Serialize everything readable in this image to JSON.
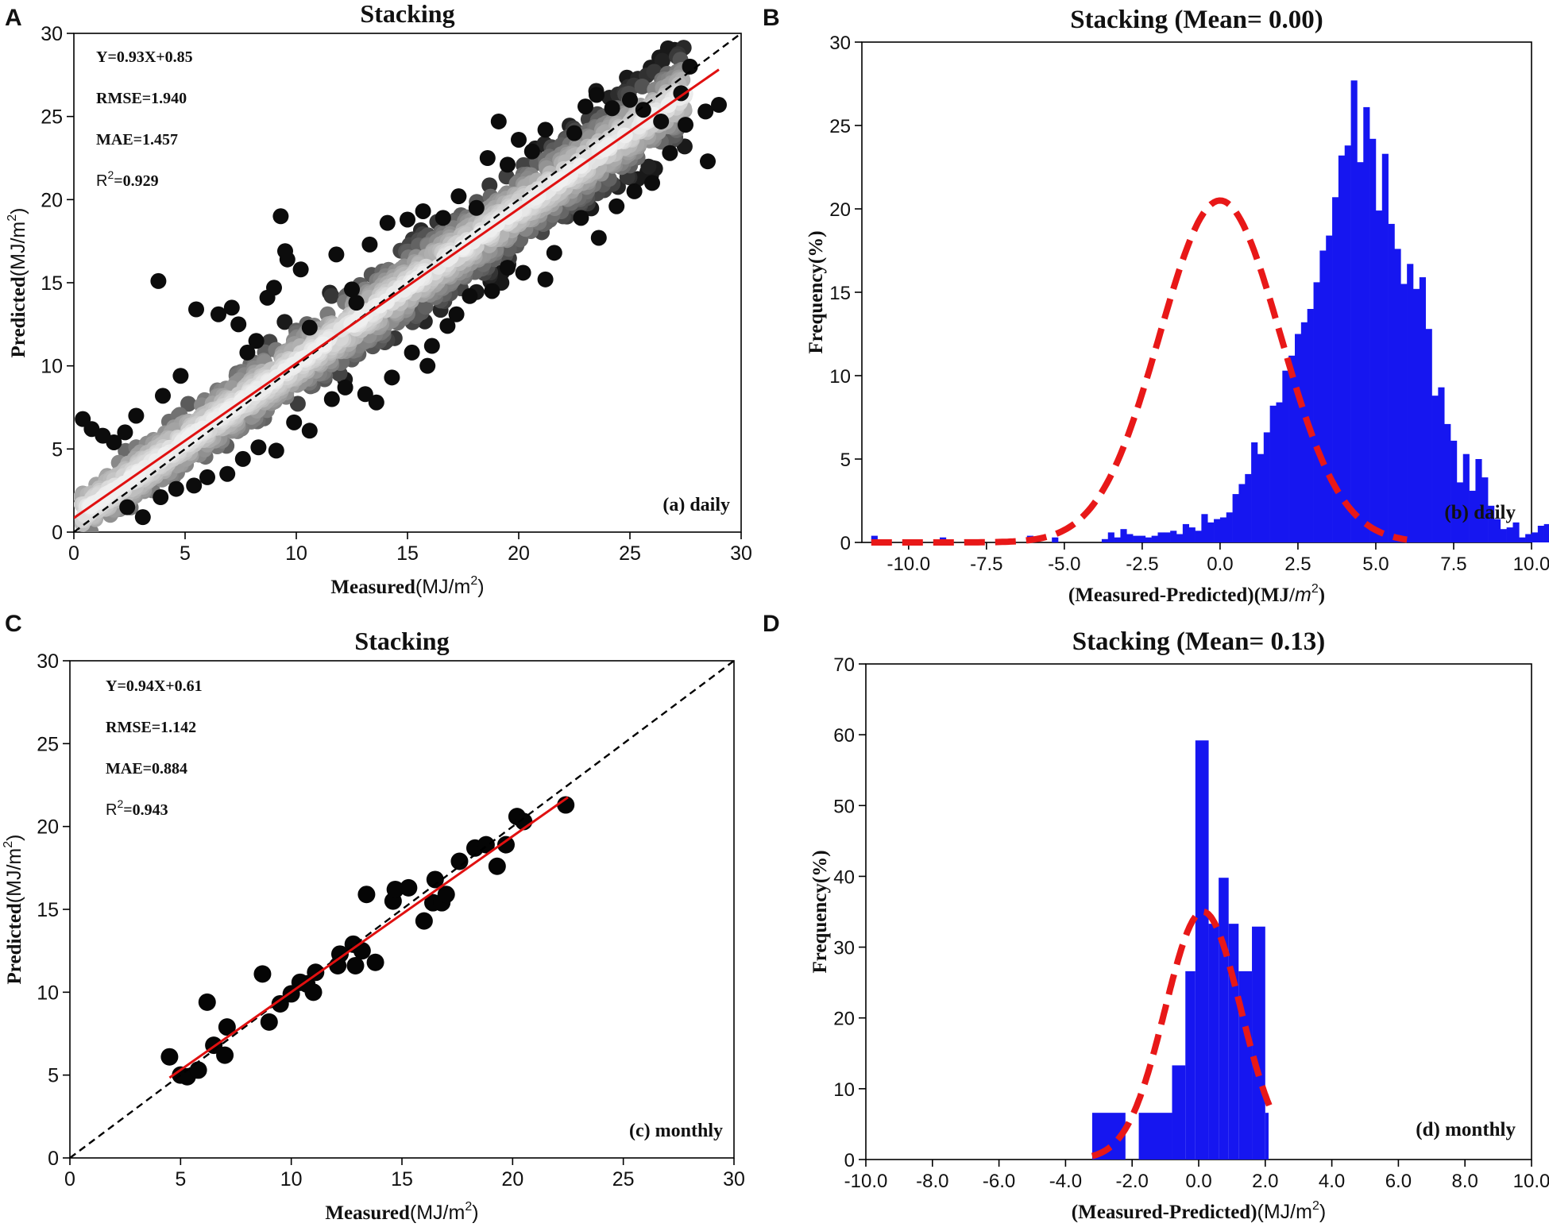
{
  "chart_data": [
    {
      "panel": "A",
      "type": "scatter",
      "title": "Stacking",
      "xlabel_bold": "Measured",
      "xlabel_unit": "(MJ/m",
      "ylabel_bold": "Predicted",
      "ylabel_unit": "(MJ/m",
      "sup": "2",
      "close_paren": ")",
      "xlim": [
        0,
        30
      ],
      "ylim": [
        0,
        30
      ],
      "xticks": [
        "0",
        "5",
        "10",
        "15",
        "20",
        "25",
        "30"
      ],
      "yticks": [
        "0",
        "5",
        "10",
        "15",
        "20",
        "25",
        "30"
      ],
      "stats": {
        "equation": "Y=0.93X+0.85",
        "rmse": "RMSE=1.940",
        "mae": "MAE=1.457",
        "r2_prefix": "R",
        "r2_sup": "2",
        "r2_value": "=0.929"
      },
      "panel_note": "(a) daily",
      "fit": {
        "slope": 0.93,
        "intercept": 0.85
      },
      "point_cloud": "dense",
      "outliers": [
        [
          0.4,
          6.8
        ],
        [
          0.8,
          6.2
        ],
        [
          1.3,
          5.8
        ],
        [
          1.8,
          5.4
        ],
        [
          2.3,
          6.0
        ],
        [
          2.8,
          7.0
        ],
        [
          3.8,
          15.1
        ],
        [
          4.0,
          8.2
        ],
        [
          4.8,
          9.4
        ],
        [
          5.5,
          13.4
        ],
        [
          6.5,
          13.1
        ],
        [
          7.1,
          13.5
        ],
        [
          7.4,
          12.5
        ],
        [
          7.8,
          10.8
        ],
        [
          8.2,
          11.5
        ],
        [
          8.7,
          14.1
        ],
        [
          9.0,
          14.7
        ],
        [
          9.3,
          19.0
        ],
        [
          9.5,
          16.9
        ],
        [
          9.6,
          16.4
        ],
        [
          10.2,
          15.8
        ],
        [
          10.6,
          12.3
        ],
        [
          11.8,
          16.7
        ],
        [
          12.5,
          14.6
        ],
        [
          12.7,
          13.8
        ],
        [
          13.3,
          17.3
        ],
        [
          14.1,
          18.6
        ],
        [
          15.0,
          18.8
        ],
        [
          15.7,
          19.3
        ],
        [
          16.6,
          18.9
        ],
        [
          17.3,
          20.2
        ],
        [
          18.1,
          19.5
        ],
        [
          18.6,
          22.5
        ],
        [
          19.1,
          24.7
        ],
        [
          19.5,
          22.1
        ],
        [
          20.0,
          23.6
        ],
        [
          20.6,
          22.9
        ],
        [
          21.2,
          24.2
        ],
        [
          22.5,
          24.0
        ],
        [
          23.0,
          25.6
        ],
        [
          23.5,
          26.3
        ],
        [
          24.2,
          25.5
        ],
        [
          25.0,
          26.0
        ],
        [
          25.6,
          25.4
        ],
        [
          26.4,
          24.7
        ],
        [
          27.3,
          26.4
        ],
        [
          27.7,
          28.0
        ],
        [
          28.4,
          25.3
        ],
        [
          29.0,
          25.7
        ],
        [
          28.5,
          22.3
        ],
        [
          27.5,
          24.5
        ],
        [
          26.8,
          22.8
        ],
        [
          26.0,
          21.0
        ],
        [
          25.2,
          20.5
        ],
        [
          24.4,
          19.6
        ],
        [
          23.6,
          17.7
        ],
        [
          22.8,
          18.9
        ],
        [
          21.6,
          16.8
        ],
        [
          21.2,
          15.2
        ],
        [
          20.2,
          15.6
        ],
        [
          19.5,
          15.9
        ],
        [
          18.8,
          14.5
        ],
        [
          17.8,
          14.2
        ],
        [
          17.2,
          13.1
        ],
        [
          16.8,
          12.4
        ],
        [
          16.1,
          11.2
        ],
        [
          15.9,
          10.0
        ],
        [
          15.2,
          10.8
        ],
        [
          14.3,
          9.3
        ],
        [
          13.6,
          7.8
        ],
        [
          13.1,
          8.3
        ],
        [
          12.2,
          8.7
        ],
        [
          11.6,
          8.0
        ],
        [
          10.6,
          6.1
        ],
        [
          9.9,
          6.6
        ],
        [
          9.1,
          4.9
        ],
        [
          8.3,
          5.1
        ],
        [
          7.6,
          4.4
        ],
        [
          6.9,
          3.5
        ],
        [
          6.0,
          3.3
        ],
        [
          5.4,
          2.8
        ],
        [
          4.6,
          2.6
        ],
        [
          3.9,
          2.1
        ],
        [
          3.1,
          0.9
        ],
        [
          2.4,
          1.5
        ]
      ]
    },
    {
      "panel": "B",
      "type": "bar",
      "title": "Stacking (Mean= 0.00)",
      "xlabel_bold": "(Measured-Predicted)",
      "xlabel_unit": "(MJ/",
      "xlabel_ital": "m",
      "sup": "2",
      "close_paren": ")",
      "ylabel": "Frequency(%)",
      "xlim": [
        -11.5,
        10.0
      ],
      "ylim": [
        0,
        30
      ],
      "xticks": [
        "-10.0",
        "-7.5",
        "-5.0",
        "-2.5",
        "0.0",
        "2.5",
        "5.0",
        "7.5",
        "10.0"
      ],
      "yticks": [
        "0",
        "5",
        "10",
        "15",
        "20",
        "25",
        "30"
      ],
      "panel_note": "(b) daily",
      "bin_start": -11.2,
      "bin_width": 0.2,
      "values": [
        0.4,
        0,
        0,
        0,
        0,
        0,
        0,
        0,
        0,
        0,
        0,
        0.3,
        0,
        0,
        0,
        0,
        0,
        0,
        0,
        0,
        0,
        0,
        0,
        0,
        0,
        0.4,
        0,
        0,
        0,
        0.3,
        0,
        0,
        0,
        0,
        0,
        0,
        0,
        0.2,
        0.6,
        0.3,
        0.8,
        0.5,
        0.4,
        0.4,
        0.3,
        0.4,
        0.6,
        0.6,
        0.7,
        0.5,
        1.1,
        0.9,
        0.7,
        1.7,
        1.2,
        1.4,
        1.5,
        1.8,
        2.9,
        3.5,
        4.1,
        6.0,
        5.3,
        6.6,
        8.2,
        8.4,
        10.3,
        11.2,
        12.5,
        13.2,
        14.0,
        15.6,
        17.5,
        18.4,
        20.7,
        23.2,
        23.8,
        27.7,
        22.8,
        26.1,
        24.2,
        19.9,
        23.3,
        19.1,
        17.6,
        15.5,
        16.7,
        15.2,
        15.9,
        12.8,
        8.8,
        9.3,
        7.1,
        6.1,
        3.6,
        5.3,
        3.1,
        5.0,
        3.9,
        2.2,
        1.4,
        0.8,
        0.9,
        1.2,
        0.3,
        0.5,
        0.6,
        1.0,
        1.1,
        0.8,
        0.3
      ],
      "normal_mean": 0.0,
      "normal_sd": 1.94,
      "normal_peak": 20.5
    },
    {
      "panel": "C",
      "type": "scatter",
      "title": "Stacking",
      "xlabel_bold": "Measured",
      "xlabel_unit": "(MJ/m",
      "ylabel_bold": "Predicted",
      "ylabel_unit": "(MJ/m",
      "sup": "2",
      "close_paren": ")",
      "xlim": [
        0,
        30
      ],
      "ylim": [
        0,
        30
      ],
      "xticks": [
        "0",
        "5",
        "10",
        "15",
        "20",
        "25",
        "30"
      ],
      "yticks": [
        "0",
        "5",
        "10",
        "15",
        "20",
        "25",
        "30"
      ],
      "stats": {
        "equation": "Y=0.94X+0.61",
        "rmse": "RMSE=1.142",
        "mae": "MAE=0.884",
        "r2_prefix": "R",
        "r2_sup": "2",
        "r2_value": "=0.943"
      },
      "panel_note": "(c) monthly",
      "fit": {
        "slope": 0.94,
        "intercept": 0.61,
        "x_from": 4.5,
        "x_to": 22.5
      },
      "points": [
        [
          4.5,
          6.1
        ],
        [
          5.0,
          5.0
        ],
        [
          5.3,
          4.9
        ],
        [
          5.8,
          5.3
        ],
        [
          6.2,
          9.4
        ],
        [
          6.5,
          6.8
        ],
        [
          7.0,
          6.2
        ],
        [
          7.1,
          7.9
        ],
        [
          8.7,
          11.1
        ],
        [
          9.0,
          8.2
        ],
        [
          9.5,
          9.3
        ],
        [
          10.0,
          9.9
        ],
        [
          10.4,
          10.6
        ],
        [
          10.7,
          10.5
        ],
        [
          11.0,
          10.0
        ],
        [
          11.1,
          11.2
        ],
        [
          12.1,
          11.6
        ],
        [
          12.2,
          12.3
        ],
        [
          12.8,
          12.9
        ],
        [
          12.9,
          11.6
        ],
        [
          13.2,
          12.5
        ],
        [
          13.4,
          15.9
        ],
        [
          13.8,
          11.8
        ],
        [
          14.6,
          15.5
        ],
        [
          14.7,
          16.2
        ],
        [
          15.3,
          16.3
        ],
        [
          16.0,
          14.3
        ],
        [
          16.4,
          15.4
        ],
        [
          16.5,
          16.8
        ],
        [
          16.8,
          15.4
        ],
        [
          17.0,
          15.9
        ],
        [
          17.6,
          17.9
        ],
        [
          18.3,
          18.7
        ],
        [
          18.8,
          18.9
        ],
        [
          19.3,
          17.6
        ],
        [
          19.7,
          18.9
        ],
        [
          20.2,
          20.6
        ],
        [
          20.5,
          20.3
        ],
        [
          22.4,
          21.3
        ]
      ]
    },
    {
      "panel": "D",
      "type": "bar",
      "title": "Stacking (Mean= 0.13)",
      "xlabel_bold": "(Measured-Predicted)",
      "xlabel_unit": "(MJ/m",
      "sup": "2",
      "close_paren": ")",
      "ylabel": "Frequency(%)",
      "xlim": [
        -10.0,
        10.0
      ],
      "ylim": [
        0,
        70
      ],
      "xticks": [
        "-10.0",
        "-8.0",
        "-6.0",
        "-4.0",
        "-2.0",
        "0.0",
        "2.0",
        "4.0",
        "6.0",
        "8.0",
        "10.0"
      ],
      "yticks": [
        "0",
        "10",
        "20",
        "30",
        "40",
        "50",
        "60",
        "70"
      ],
      "panel_note": "(d) monthly",
      "bins": [
        [
          -3.2,
          -2.2,
          6.6
        ],
        [
          -1.8,
          -0.8,
          6.6
        ],
        [
          -0.8,
          -0.4,
          13.3
        ],
        [
          -0.4,
          -0.1,
          26.6
        ],
        [
          -0.1,
          0.3,
          59.2
        ],
        [
          0.3,
          0.6,
          33.3
        ],
        [
          0.6,
          0.9,
          39.8
        ],
        [
          0.9,
          1.2,
          33.3
        ],
        [
          1.2,
          1.6,
          26.6
        ],
        [
          1.6,
          2.0,
          32.9
        ],
        [
          2.0,
          2.1,
          6.6
        ]
      ],
      "normal_mean": 0.13,
      "normal_sd": 1.14,
      "normal_peak": 35.0,
      "curve_range": [
        -3.2,
        2.2
      ]
    }
  ],
  "panel_letters": [
    "A",
    "B",
    "C",
    "D"
  ]
}
